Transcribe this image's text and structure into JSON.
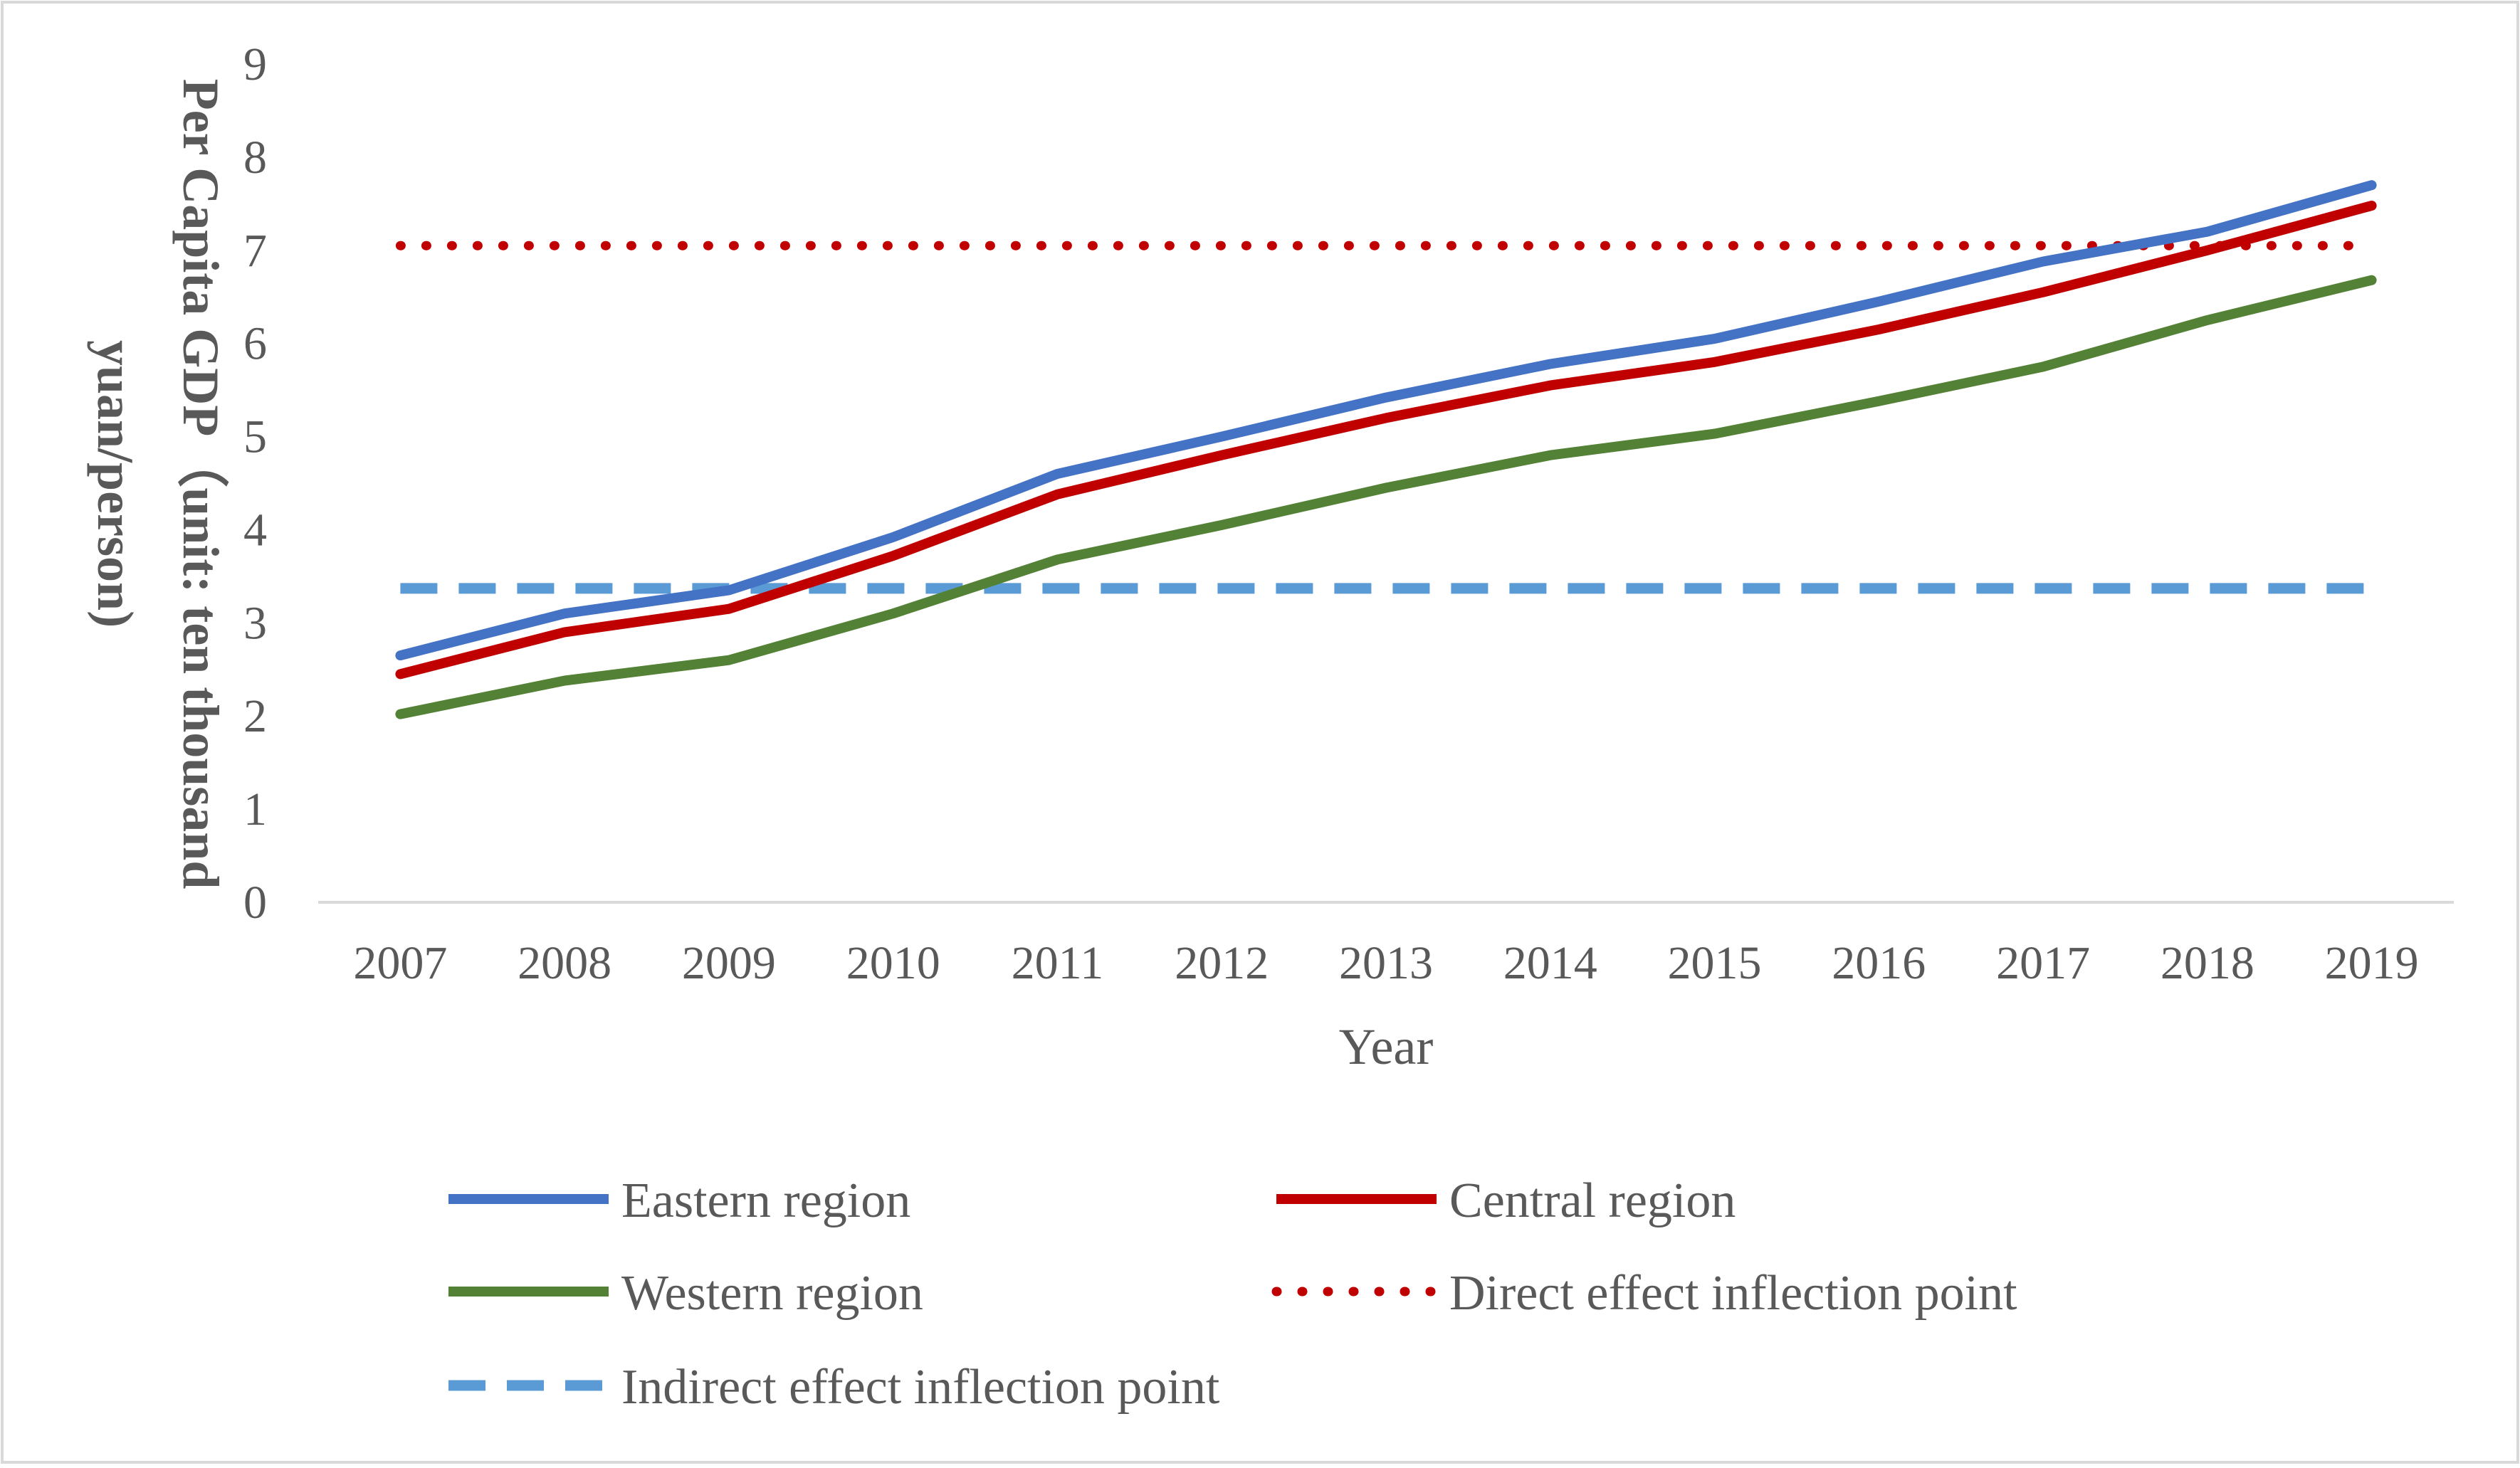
{
  "chart_data": {
    "type": "line",
    "title": "",
    "xlabel": "Year",
    "ylabel_lines": [
      "Per Capita GDP（unit: ten thousand",
      "yuan/person)"
    ],
    "x": [
      "2007",
      "2008",
      "2009",
      "2010",
      "2011",
      "2012",
      "2013",
      "2014",
      "2015",
      "2016",
      "2017",
      "2018",
      "2019"
    ],
    "ylim": [
      0,
      9
    ],
    "yticks": [
      "0",
      "1",
      "2",
      "3",
      "4",
      "5",
      "6",
      "7",
      "8",
      "9"
    ],
    "grid": false,
    "legend_position": "bottom",
    "series": [
      {
        "name": "Eastern region",
        "color": "#4472C4",
        "style": "solid",
        "values": [
          2.65,
          3.1,
          3.35,
          3.92,
          4.6,
          5.0,
          5.42,
          5.78,
          6.05,
          6.45,
          6.88,
          7.2,
          7.7
        ]
      },
      {
        "name": "Central region",
        "color": "#C00000",
        "style": "solid",
        "values": [
          2.45,
          2.9,
          3.15,
          3.72,
          4.38,
          4.8,
          5.2,
          5.55,
          5.8,
          6.15,
          6.55,
          7.0,
          7.48
        ]
      },
      {
        "name": "Western region",
        "color": "#538135",
        "style": "solid",
        "values": [
          2.02,
          2.38,
          2.6,
          3.1,
          3.68,
          4.05,
          4.45,
          4.8,
          5.03,
          5.38,
          5.75,
          6.25,
          6.68
        ]
      },
      {
        "name": "Direct effect inflection point",
        "color": "#C00000",
        "style": "dotted",
        "values": [
          7.05,
          7.05,
          7.05,
          7.05,
          7.05,
          7.05,
          7.05,
          7.05,
          7.05,
          7.05,
          7.05,
          7.05,
          7.05
        ]
      },
      {
        "name": "Indirect effect inflection point",
        "color": "#5B9BD5",
        "style": "dashed",
        "values": [
          3.37,
          3.37,
          3.37,
          3.37,
          3.37,
          3.37,
          3.37,
          3.37,
          3.37,
          3.37,
          3.37,
          3.37,
          3.37
        ]
      }
    ]
  }
}
